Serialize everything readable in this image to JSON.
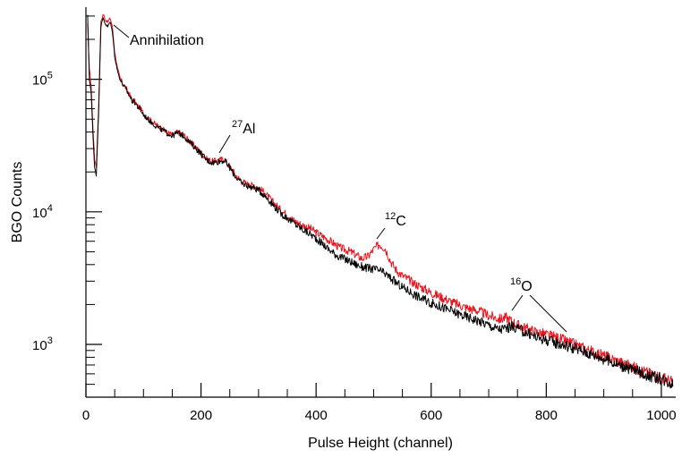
{
  "chart_data": {
    "type": "line",
    "title": "",
    "xlabel": "Pulse Height (channel)",
    "ylabel": "BGO Counts",
    "xlim": [
      0,
      1025
    ],
    "ylim": [
      400,
      350000
    ],
    "y_scale": "log",
    "x_ticks": [
      0,
      200,
      400,
      600,
      800,
      1000
    ],
    "x_tick_labels": [
      "0",
      "200",
      "400",
      "600",
      "800",
      "1000"
    ],
    "y_ticks": [
      1000,
      10000,
      100000
    ],
    "y_tick_labels": [
      {
        "base": "10",
        "exp": "3"
      },
      {
        "base": "10",
        "exp": "4"
      },
      {
        "base": "10",
        "exp": "5"
      }
    ],
    "grid": false,
    "legend": "none",
    "series": [
      {
        "color": "#e8141e",
        "x": [
          3,
          6,
          9,
          12,
          15,
          18,
          22,
          26,
          30,
          34,
          38,
          42,
          46,
          50,
          55,
          60,
          65,
          70,
          75,
          80,
          85,
          90,
          95,
          100,
          110,
          120,
          130,
          140,
          150,
          160,
          170,
          180,
          190,
          200,
          210,
          220,
          230,
          240,
          250,
          260,
          270,
          280,
          290,
          300,
          310,
          320,
          330,
          340,
          350,
          360,
          370,
          380,
          390,
          400,
          410,
          420,
          430,
          440,
          450,
          460,
          470,
          480,
          490,
          500,
          510,
          520,
          530,
          540,
          550,
          560,
          570,
          580,
          590,
          600,
          620,
          640,
          660,
          680,
          700,
          710,
          720,
          730,
          740,
          750,
          760,
          780,
          800,
          820,
          840,
          860,
          880,
          900,
          920,
          940,
          960,
          980,
          1000,
          1020
        ],
        "y": [
          260000,
          120000,
          90000,
          45000,
          25000,
          22000,
          60000,
          270000,
          310000,
          280000,
          270000,
          290000,
          250000,
          160000,
          120000,
          100000,
          92000,
          85000,
          78000,
          70000,
          68000,
          63000,
          60000,
          55000,
          50000,
          46000,
          43000,
          40000,
          38000,
          40000,
          38000,
          34000,
          31000,
          28000,
          25000,
          24000,
          24500,
          25000,
          22000,
          19000,
          17000,
          16200,
          15800,
          15200,
          14000,
          12500,
          11300,
          10200,
          9500,
          8700,
          8200,
          7800,
          7500,
          7000,
          6600,
          6200,
          5800,
          5400,
          5200,
          5000,
          4700,
          4450,
          4600,
          5200,
          5700,
          5300,
          4200,
          3600,
          3300,
          3100,
          2900,
          2750,
          2600,
          2450,
          2250,
          2050,
          1900,
          1800,
          1650,
          1600,
          1550,
          1600,
          1500,
          1400,
          1350,
          1250,
          1180,
          1120,
          1030,
          960,
          880,
          820,
          760,
          700,
          650,
          600,
          560,
          520
        ]
      },
      {
        "color": "#000000",
        "x": [
          3,
          6,
          9,
          12,
          15,
          18,
          22,
          26,
          30,
          34,
          38,
          42,
          46,
          50,
          55,
          60,
          65,
          70,
          75,
          80,
          85,
          90,
          95,
          100,
          110,
          120,
          130,
          140,
          150,
          160,
          170,
          180,
          190,
          200,
          210,
          220,
          230,
          240,
          250,
          260,
          270,
          280,
          290,
          300,
          310,
          320,
          330,
          340,
          350,
          360,
          370,
          380,
          390,
          400,
          410,
          420,
          430,
          440,
          450,
          460,
          470,
          480,
          490,
          500,
          510,
          520,
          530,
          540,
          550,
          560,
          570,
          580,
          590,
          600,
          620,
          640,
          660,
          680,
          700,
          710,
          720,
          730,
          740,
          750,
          760,
          780,
          800,
          820,
          840,
          860,
          880,
          900,
          920,
          940,
          960,
          980,
          1000,
          1020
        ],
        "y": [
          300000,
          100000,
          80000,
          40000,
          22000,
          19000,
          55000,
          250000,
          290000,
          260000,
          250000,
          270000,
          230000,
          150000,
          115000,
          98000,
          90000,
          83000,
          76000,
          69000,
          67000,
          62000,
          59000,
          54000,
          49000,
          45000,
          42000,
          39500,
          37500,
          39500,
          37500,
          33500,
          30500,
          27500,
          24500,
          23500,
          24000,
          24500,
          21500,
          18500,
          16500,
          15800,
          15300,
          14600,
          13400,
          12000,
          10700,
          9600,
          9000,
          8300,
          7700,
          7200,
          6800,
          6300,
          5800,
          5300,
          4900,
          4600,
          4400,
          4200,
          4000,
          3850,
          3750,
          3700,
          3600,
          3400,
          3150,
          2900,
          2700,
          2550,
          2400,
          2250,
          2150,
          2050,
          1900,
          1750,
          1620,
          1520,
          1400,
          1330,
          1300,
          1320,
          1360,
          1320,
          1250,
          1150,
          1080,
          1020,
          960,
          900,
          840,
          780,
          720,
          670,
          620,
          580,
          550,
          510
        ]
      }
    ],
    "annotations": [
      {
        "label": "Annihilation",
        "sup": ""
      },
      {
        "label": "Al",
        "sup": "27"
      },
      {
        "label": "C",
        "sup": "12"
      },
      {
        "label": "O",
        "sup": "16"
      }
    ]
  }
}
